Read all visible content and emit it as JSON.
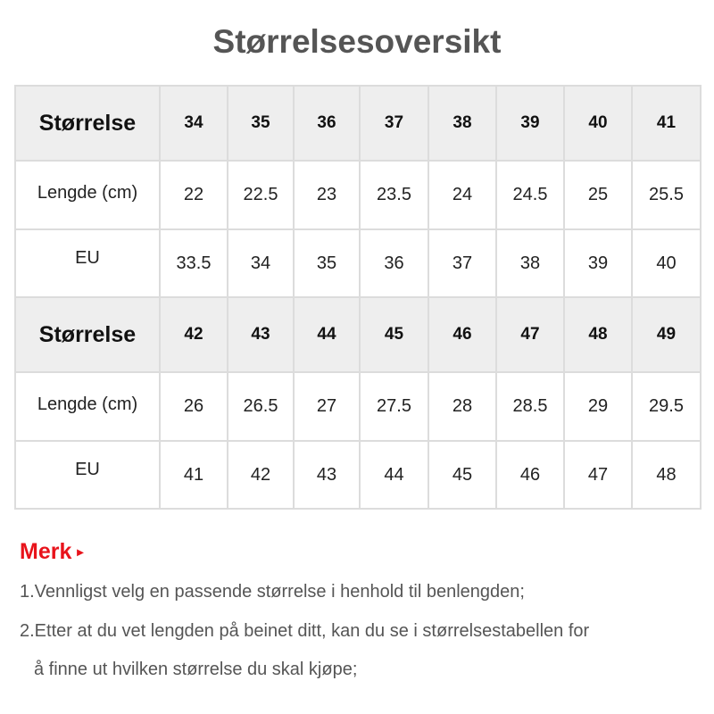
{
  "title": "Størrelsesoversikt",
  "tables": [
    {
      "header_label": "Størrelse",
      "sizes": [
        "34",
        "35",
        "36",
        "37",
        "38",
        "39",
        "40",
        "41"
      ],
      "length_label": "Lengde (cm)",
      "lengths": [
        "22",
        "22.5",
        "23",
        "23.5",
        "24",
        "24.5",
        "25",
        "25.5"
      ],
      "eu_label": "EU",
      "eu": [
        "33.5",
        "34",
        "35",
        "36",
        "37",
        "38",
        "39",
        "40"
      ]
    },
    {
      "header_label": "Størrelse",
      "sizes": [
        "42",
        "43",
        "44",
        "45",
        "46",
        "47",
        "48",
        "49"
      ],
      "length_label": "Lengde (cm)",
      "lengths": [
        "26",
        "26.5",
        "27",
        "27.5",
        "28",
        "28.5",
        "29",
        "29.5"
      ],
      "eu_label": "EU",
      "eu": [
        "41",
        "42",
        "43",
        "44",
        "45",
        "46",
        "47",
        "48"
      ]
    }
  ],
  "note": {
    "heading": "Merk",
    "arrow": "▸",
    "lines": [
      "1.Vennligst velg en passende størrelse i henhold til benlengden;",
      "2.Etter at du vet lengden på beinet ditt, kan du se i størrelsestabellen for",
      "   å finne ut hvilken størrelse du skal kjøpe;"
    ]
  },
  "colors": {
    "accent": "#e8131b",
    "header_bg": "#eeeeee",
    "border": "#dcdcdc"
  }
}
